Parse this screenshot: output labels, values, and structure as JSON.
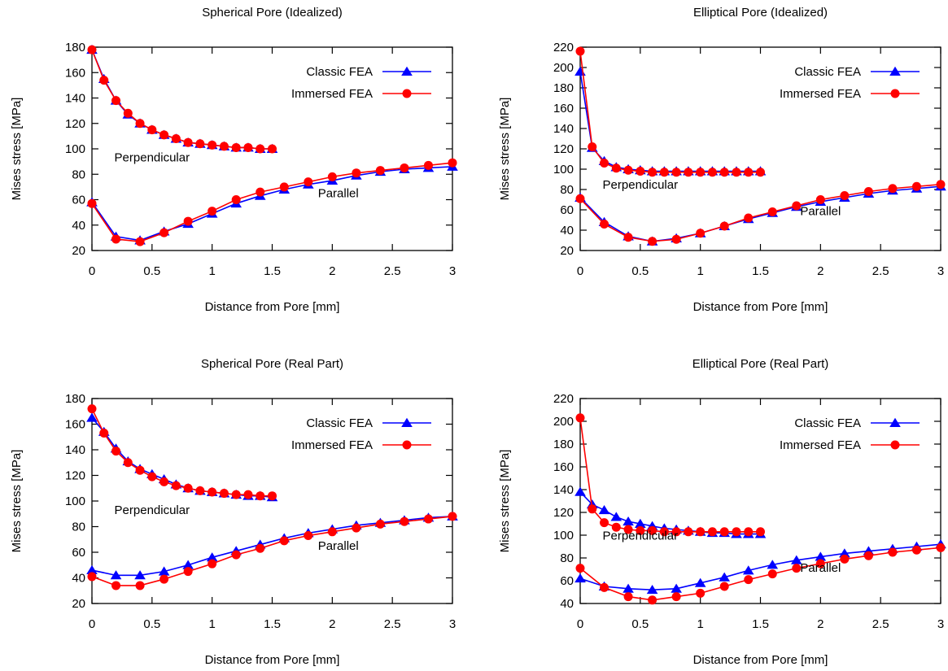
{
  "chart_data": [
    {
      "type": "line",
      "title": "Spherical Pore (Idealized)",
      "xlabel": "Distance from Pore [mm]",
      "ylabel": "Mises stress [MPa]",
      "xlim": [
        0,
        3
      ],
      "ylim": [
        20,
        180
      ],
      "xticks": [
        0,
        0.5,
        1,
        1.5,
        2,
        2.5,
        3
      ],
      "xtick_labels": [
        "0",
        "0.5",
        "1",
        "1.5",
        "2",
        "2.5",
        "3"
      ],
      "yticks": [
        20,
        40,
        60,
        80,
        100,
        120,
        140,
        160,
        180
      ],
      "ytick_labels": [
        "20",
        "40",
        "60",
        "80",
        "100",
        "120",
        "140",
        "160",
        "180"
      ],
      "grid": false,
      "legend_position": "top-right",
      "annotations": [
        {
          "text": "Perpendicular",
          "x": 0.5,
          "y": 90
        },
        {
          "text": "Parallel",
          "x": 2.05,
          "y": 62
        }
      ],
      "series": [
        {
          "name": "Classic FEA",
          "color": "#0000ff",
          "marker": "triangle",
          "x": [
            0,
            0.1,
            0.2,
            0.3,
            0.4,
            0.5,
            0.6,
            0.7,
            0.8,
            0.9,
            1.0,
            1.1,
            1.2,
            1.3,
            1.4,
            1.5
          ],
          "y": [
            178,
            155,
            138,
            127,
            120,
            115,
            111,
            108,
            105,
            104,
            103,
            102,
            101,
            101,
            100,
            100
          ]
        },
        {
          "name": "Immersed FEA",
          "color": "#ff0000",
          "marker": "circle",
          "x": [
            0,
            0.1,
            0.2,
            0.3,
            0.4,
            0.5,
            0.6,
            0.7,
            0.8,
            0.9,
            1.0,
            1.1,
            1.2,
            1.3,
            1.4,
            1.5
          ],
          "y": [
            178,
            154,
            138,
            128,
            120,
            115,
            111,
            108,
            105,
            104,
            103,
            102,
            101,
            101,
            100,
            100
          ]
        },
        {
          "color": "#0000ff",
          "marker": "triangle",
          "x": [
            0,
            0.2,
            0.4,
            0.6,
            0.8,
            1.0,
            1.2,
            1.4,
            1.6,
            1.8,
            2.0,
            2.2,
            2.4,
            2.6,
            2.8,
            3.0
          ],
          "y": [
            58,
            31,
            28,
            35,
            41,
            49,
            57,
            63,
            68,
            72,
            75,
            79,
            82,
            84,
            85,
            86
          ]
        },
        {
          "color": "#ff0000",
          "marker": "circle",
          "x": [
            0,
            0.2,
            0.4,
            0.6,
            0.8,
            1.0,
            1.2,
            1.4,
            1.6,
            1.8,
            2.0,
            2.2,
            2.4,
            2.6,
            2.8,
            3.0
          ],
          "y": [
            57,
            29,
            27,
            34,
            43,
            51,
            60,
            66,
            70,
            74,
            78,
            81,
            83,
            85,
            87,
            89
          ]
        }
      ]
    },
    {
      "type": "line",
      "title": "Elliptical Pore (Idealized)",
      "xlabel": "Distance from Pore [mm]",
      "ylabel": "Mises stress [MPa]",
      "xlim": [
        0,
        3
      ],
      "ylim": [
        20,
        220
      ],
      "xticks": [
        0,
        0.5,
        1,
        1.5,
        2,
        2.5,
        3
      ],
      "xtick_labels": [
        "0",
        "0.5",
        "1",
        "1.5",
        "2",
        "2.5",
        "3"
      ],
      "yticks": [
        20,
        40,
        60,
        80,
        100,
        120,
        140,
        160,
        180,
        200,
        220
      ],
      "ytick_labels": [
        "20",
        "40",
        "60",
        "80",
        "100",
        "120",
        "140",
        "160",
        "180",
        "200",
        "220"
      ],
      "grid": false,
      "legend_position": "top-right",
      "annotations": [
        {
          "text": "Perpendicular",
          "x": 0.5,
          "y": 81
        },
        {
          "text": "Parallel",
          "x": 2.0,
          "y": 55
        }
      ],
      "series": [
        {
          "name": "Classic FEA",
          "color": "#0000ff",
          "marker": "triangle",
          "x": [
            0,
            0.1,
            0.2,
            0.3,
            0.4,
            0.5,
            0.6,
            0.7,
            0.8,
            0.9,
            1.0,
            1.1,
            1.2,
            1.3,
            1.4,
            1.5
          ],
          "y": [
            196,
            121,
            108,
            102,
            100,
            99,
            98,
            98,
            98,
            98,
            98,
            98,
            98,
            98,
            98,
            98
          ]
        },
        {
          "name": "Immersed FEA",
          "color": "#ff0000",
          "marker": "circle",
          "x": [
            0,
            0.1,
            0.2,
            0.3,
            0.4,
            0.5,
            0.6,
            0.7,
            0.8,
            0.9,
            1.0,
            1.1,
            1.2,
            1.3,
            1.4,
            1.5
          ],
          "y": [
            216,
            122,
            106,
            101,
            99,
            98,
            97,
            97,
            97,
            97,
            97,
            97,
            97,
            97,
            97,
            97
          ]
        },
        {
          "color": "#0000ff",
          "marker": "triangle",
          "x": [
            0,
            0.2,
            0.4,
            0.6,
            0.8,
            1.0,
            1.2,
            1.4,
            1.6,
            1.8,
            2.0,
            2.2,
            2.4,
            2.6,
            2.8,
            3.0
          ],
          "y": [
            72,
            48,
            34,
            29,
            32,
            37,
            44,
            51,
            57,
            63,
            68,
            72,
            76,
            79,
            81,
            83
          ]
        },
        {
          "color": "#ff0000",
          "marker": "circle",
          "x": [
            0,
            0.2,
            0.4,
            0.6,
            0.8,
            1.0,
            1.2,
            1.4,
            1.6,
            1.8,
            2.0,
            2.2,
            2.4,
            2.6,
            2.8,
            3.0
          ],
          "y": [
            71,
            46,
            33,
            29,
            31,
            37,
            44,
            52,
            58,
            64,
            70,
            74,
            78,
            81,
            83,
            85
          ]
        }
      ]
    },
    {
      "type": "line",
      "title": "Spherical Pore (Real Part)",
      "xlabel": "Distance from Pore [mm]",
      "ylabel": "Mises stress [MPa]",
      "xlim": [
        0,
        3
      ],
      "ylim": [
        20,
        180
      ],
      "xticks": [
        0,
        0.5,
        1,
        1.5,
        2,
        2.5,
        3
      ],
      "xtick_labels": [
        "0",
        "0.5",
        "1",
        "1.5",
        "2",
        "2.5",
        "3"
      ],
      "yticks": [
        20,
        40,
        60,
        80,
        100,
        120,
        140,
        160,
        180
      ],
      "ytick_labels": [
        "20",
        "40",
        "60",
        "80",
        "100",
        "120",
        "140",
        "160",
        "180"
      ],
      "grid": false,
      "legend_position": "top-right",
      "annotations": [
        {
          "text": "Perpendicular",
          "x": 0.5,
          "y": 90
        },
        {
          "text": "Parallel",
          "x": 2.05,
          "y": 62
        }
      ],
      "series": [
        {
          "name": "Classic FEA",
          "color": "#0000ff",
          "marker": "triangle",
          "x": [
            0,
            0.1,
            0.2,
            0.3,
            0.4,
            0.5,
            0.6,
            0.7,
            0.8,
            0.9,
            1.0,
            1.1,
            1.2,
            1.3,
            1.4,
            1.5
          ],
          "y": [
            165,
            154,
            141,
            131,
            125,
            121,
            117,
            113,
            110,
            108,
            107,
            106,
            105,
            104,
            104,
            103
          ]
        },
        {
          "name": "Immersed FEA",
          "color": "#ff0000",
          "marker": "circle",
          "x": [
            0,
            0.1,
            0.2,
            0.3,
            0.4,
            0.5,
            0.6,
            0.7,
            0.8,
            0.9,
            1.0,
            1.1,
            1.2,
            1.3,
            1.4,
            1.5
          ],
          "y": [
            172,
            153,
            139,
            130,
            124,
            119,
            115,
            112,
            110,
            108,
            107,
            106,
            105,
            105,
            104,
            104
          ]
        },
        {
          "color": "#0000ff",
          "marker": "triangle",
          "x": [
            0,
            0.2,
            0.4,
            0.6,
            0.8,
            1.0,
            1.2,
            1.4,
            1.6,
            1.8,
            2.0,
            2.2,
            2.4,
            2.6,
            2.8,
            3.0
          ],
          "y": [
            46,
            42,
            42,
            45,
            50,
            56,
            61,
            66,
            71,
            75,
            78,
            81,
            83,
            85,
            87,
            88
          ]
        },
        {
          "color": "#ff0000",
          "marker": "circle",
          "x": [
            0,
            0.2,
            0.4,
            0.6,
            0.8,
            1.0,
            1.2,
            1.4,
            1.6,
            1.8,
            2.0,
            2.2,
            2.4,
            2.6,
            2.8,
            3.0
          ],
          "y": [
            41,
            34,
            34,
            39,
            45,
            51,
            58,
            63,
            69,
            73,
            76,
            79,
            82,
            84,
            86,
            88
          ]
        }
      ]
    },
    {
      "type": "line",
      "title": "Elliptical Pore (Real Part)",
      "xlabel": "Distance from Pore [mm]",
      "ylabel": "Mises stress [MPa]",
      "xlim": [
        0,
        3
      ],
      "ylim": [
        40,
        220
      ],
      "xticks": [
        0,
        0.5,
        1,
        1.5,
        2,
        2.5,
        3
      ],
      "xtick_labels": [
        "0",
        "0.5",
        "1",
        "1.5",
        "2",
        "2.5",
        "3"
      ],
      "yticks": [
        40,
        60,
        80,
        100,
        120,
        140,
        160,
        180,
        200,
        220
      ],
      "ytick_labels": [
        "40",
        "60",
        "80",
        "100",
        "120",
        "140",
        "160",
        "180",
        "200",
        "220"
      ],
      "grid": false,
      "legend_position": "top-right",
      "annotations": [
        {
          "text": "Perpendicular",
          "x": 0.5,
          "y": 96
        },
        {
          "text": "Parallel",
          "x": 2.0,
          "y": 68
        }
      ],
      "series": [
        {
          "name": "Classic FEA",
          "color": "#0000ff",
          "marker": "triangle",
          "x": [
            0,
            0.1,
            0.2,
            0.3,
            0.4,
            0.5,
            0.6,
            0.7,
            0.8,
            0.9,
            1.0,
            1.1,
            1.2,
            1.3,
            1.4,
            1.5
          ],
          "y": [
            138,
            127,
            122,
            116,
            112,
            110,
            108,
            106,
            105,
            104,
            103,
            102,
            102,
            101,
            101,
            101
          ]
        },
        {
          "name": "Immersed FEA",
          "color": "#ff0000",
          "marker": "circle",
          "x": [
            0,
            0.1,
            0.2,
            0.3,
            0.4,
            0.5,
            0.6,
            0.7,
            0.8,
            0.9,
            1.0,
            1.1,
            1.2,
            1.3,
            1.4,
            1.5
          ],
          "y": [
            203,
            123,
            111,
            107,
            105,
            104,
            104,
            103,
            103,
            103,
            103,
            103,
            103,
            103,
            103,
            103
          ]
        },
        {
          "color": "#0000ff",
          "marker": "triangle",
          "x": [
            0,
            0.2,
            0.4,
            0.6,
            0.8,
            1.0,
            1.2,
            1.4,
            1.6,
            1.8,
            2.0,
            2.2,
            2.4,
            2.6,
            2.8,
            3.0
          ],
          "y": [
            62,
            55,
            53,
            52,
            53,
            58,
            63,
            69,
            74,
            78,
            81,
            84,
            86,
            88,
            90,
            92
          ]
        },
        {
          "color": "#ff0000",
          "marker": "circle",
          "x": [
            0,
            0.2,
            0.4,
            0.6,
            0.8,
            1.0,
            1.2,
            1.4,
            1.6,
            1.8,
            2.0,
            2.2,
            2.4,
            2.6,
            2.8,
            3.0
          ],
          "y": [
            71,
            54,
            46,
            43,
            46,
            49,
            55,
            61,
            66,
            71,
            75,
            79,
            82,
            85,
            87,
            89
          ]
        }
      ]
    }
  ]
}
